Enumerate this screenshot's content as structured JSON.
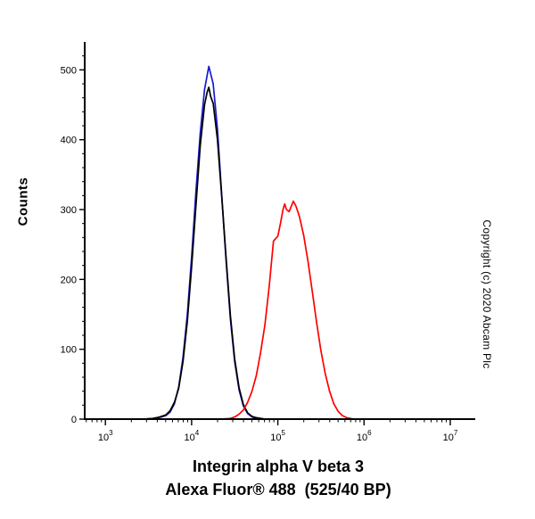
{
  "figure": {
    "ylabel": "Counts",
    "copyright": "Copyright (c) 2020 Abcam Plc",
    "title_line1": "Integrin alpha V beta 3",
    "title_line2": "Alexa Fluor® 488  (525/40 BP)"
  },
  "chart_data": {
    "type": "line",
    "title": "",
    "xlabel": "Integrin alpha V beta 3 / Alexa Fluor® 488  (525/40 BP)",
    "ylabel": "Counts",
    "x_scale": "log10",
    "xlim_log10": [
      2.76,
      7.29
    ],
    "ylim": [
      0,
      540
    ],
    "y_ticks": [
      0,
      100,
      200,
      300,
      400,
      500
    ],
    "x_tick_exponents": [
      3,
      4,
      5,
      6,
      7
    ],
    "grid": false,
    "legend": "none",
    "series": [
      {
        "name": "blue",
        "color": "#1a1acc",
        "points": [
          [
            3.45,
            0
          ],
          [
            3.55,
            1
          ],
          [
            3.6,
            2
          ],
          [
            3.65,
            3
          ],
          [
            3.7,
            5
          ],
          [
            3.75,
            10
          ],
          [
            3.8,
            22
          ],
          [
            3.85,
            46
          ],
          [
            3.9,
            88
          ],
          [
            3.95,
            150
          ],
          [
            4.0,
            232
          ],
          [
            4.05,
            325
          ],
          [
            4.1,
            410
          ],
          [
            4.15,
            472
          ],
          [
            4.2,
            505
          ],
          [
            4.25,
            480
          ],
          [
            4.3,
            415
          ],
          [
            4.35,
            320
          ],
          [
            4.4,
            226
          ],
          [
            4.45,
            143
          ],
          [
            4.5,
            82
          ],
          [
            4.55,
            42
          ],
          [
            4.6,
            19
          ],
          [
            4.65,
            8
          ],
          [
            4.7,
            3
          ],
          [
            4.75,
            1
          ],
          [
            4.85,
            0
          ]
        ]
      },
      {
        "name": "black",
        "color": "#000000",
        "points": [
          [
            3.45,
            0
          ],
          [
            3.55,
            1
          ],
          [
            3.6,
            2
          ],
          [
            3.65,
            4
          ],
          [
            3.7,
            6
          ],
          [
            3.75,
            12
          ],
          [
            3.8,
            24
          ],
          [
            3.85,
            44
          ],
          [
            3.9,
            82
          ],
          [
            3.95,
            140
          ],
          [
            4.0,
            218
          ],
          [
            4.05,
            305
          ],
          [
            4.1,
            392
          ],
          [
            4.15,
            450
          ],
          [
            4.18,
            468
          ],
          [
            4.2,
            475
          ],
          [
            4.22,
            462
          ],
          [
            4.25,
            452
          ],
          [
            4.3,
            400
          ],
          [
            4.35,
            318
          ],
          [
            4.4,
            230
          ],
          [
            4.45,
            148
          ],
          [
            4.5,
            86
          ],
          [
            4.55,
            45
          ],
          [
            4.6,
            21
          ],
          [
            4.65,
            9
          ],
          [
            4.7,
            4
          ],
          [
            4.75,
            2
          ],
          [
            4.85,
            0
          ]
        ]
      },
      {
        "name": "red",
        "color": "#ff0000",
        "points": [
          [
            4.35,
            0
          ],
          [
            4.45,
            1
          ],
          [
            4.5,
            3
          ],
          [
            4.55,
            7
          ],
          [
            4.6,
            13
          ],
          [
            4.65,
            24
          ],
          [
            4.7,
            40
          ],
          [
            4.75,
            62
          ],
          [
            4.8,
            95
          ],
          [
            4.85,
            135
          ],
          [
            4.9,
            190
          ],
          [
            4.95,
            255
          ],
          [
            5.0,
            262
          ],
          [
            5.03,
            280
          ],
          [
            5.06,
            300
          ],
          [
            5.08,
            308
          ],
          [
            5.1,
            300
          ],
          [
            5.13,
            297
          ],
          [
            5.16,
            306
          ],
          [
            5.18,
            312
          ],
          [
            5.21,
            305
          ],
          [
            5.25,
            290
          ],
          [
            5.3,
            263
          ],
          [
            5.35,
            226
          ],
          [
            5.4,
            182
          ],
          [
            5.45,
            138
          ],
          [
            5.5,
            98
          ],
          [
            5.55,
            65
          ],
          [
            5.6,
            40
          ],
          [
            5.65,
            22
          ],
          [
            5.7,
            11
          ],
          [
            5.75,
            5
          ],
          [
            5.8,
            2
          ],
          [
            5.88,
            0
          ]
        ]
      }
    ]
  }
}
